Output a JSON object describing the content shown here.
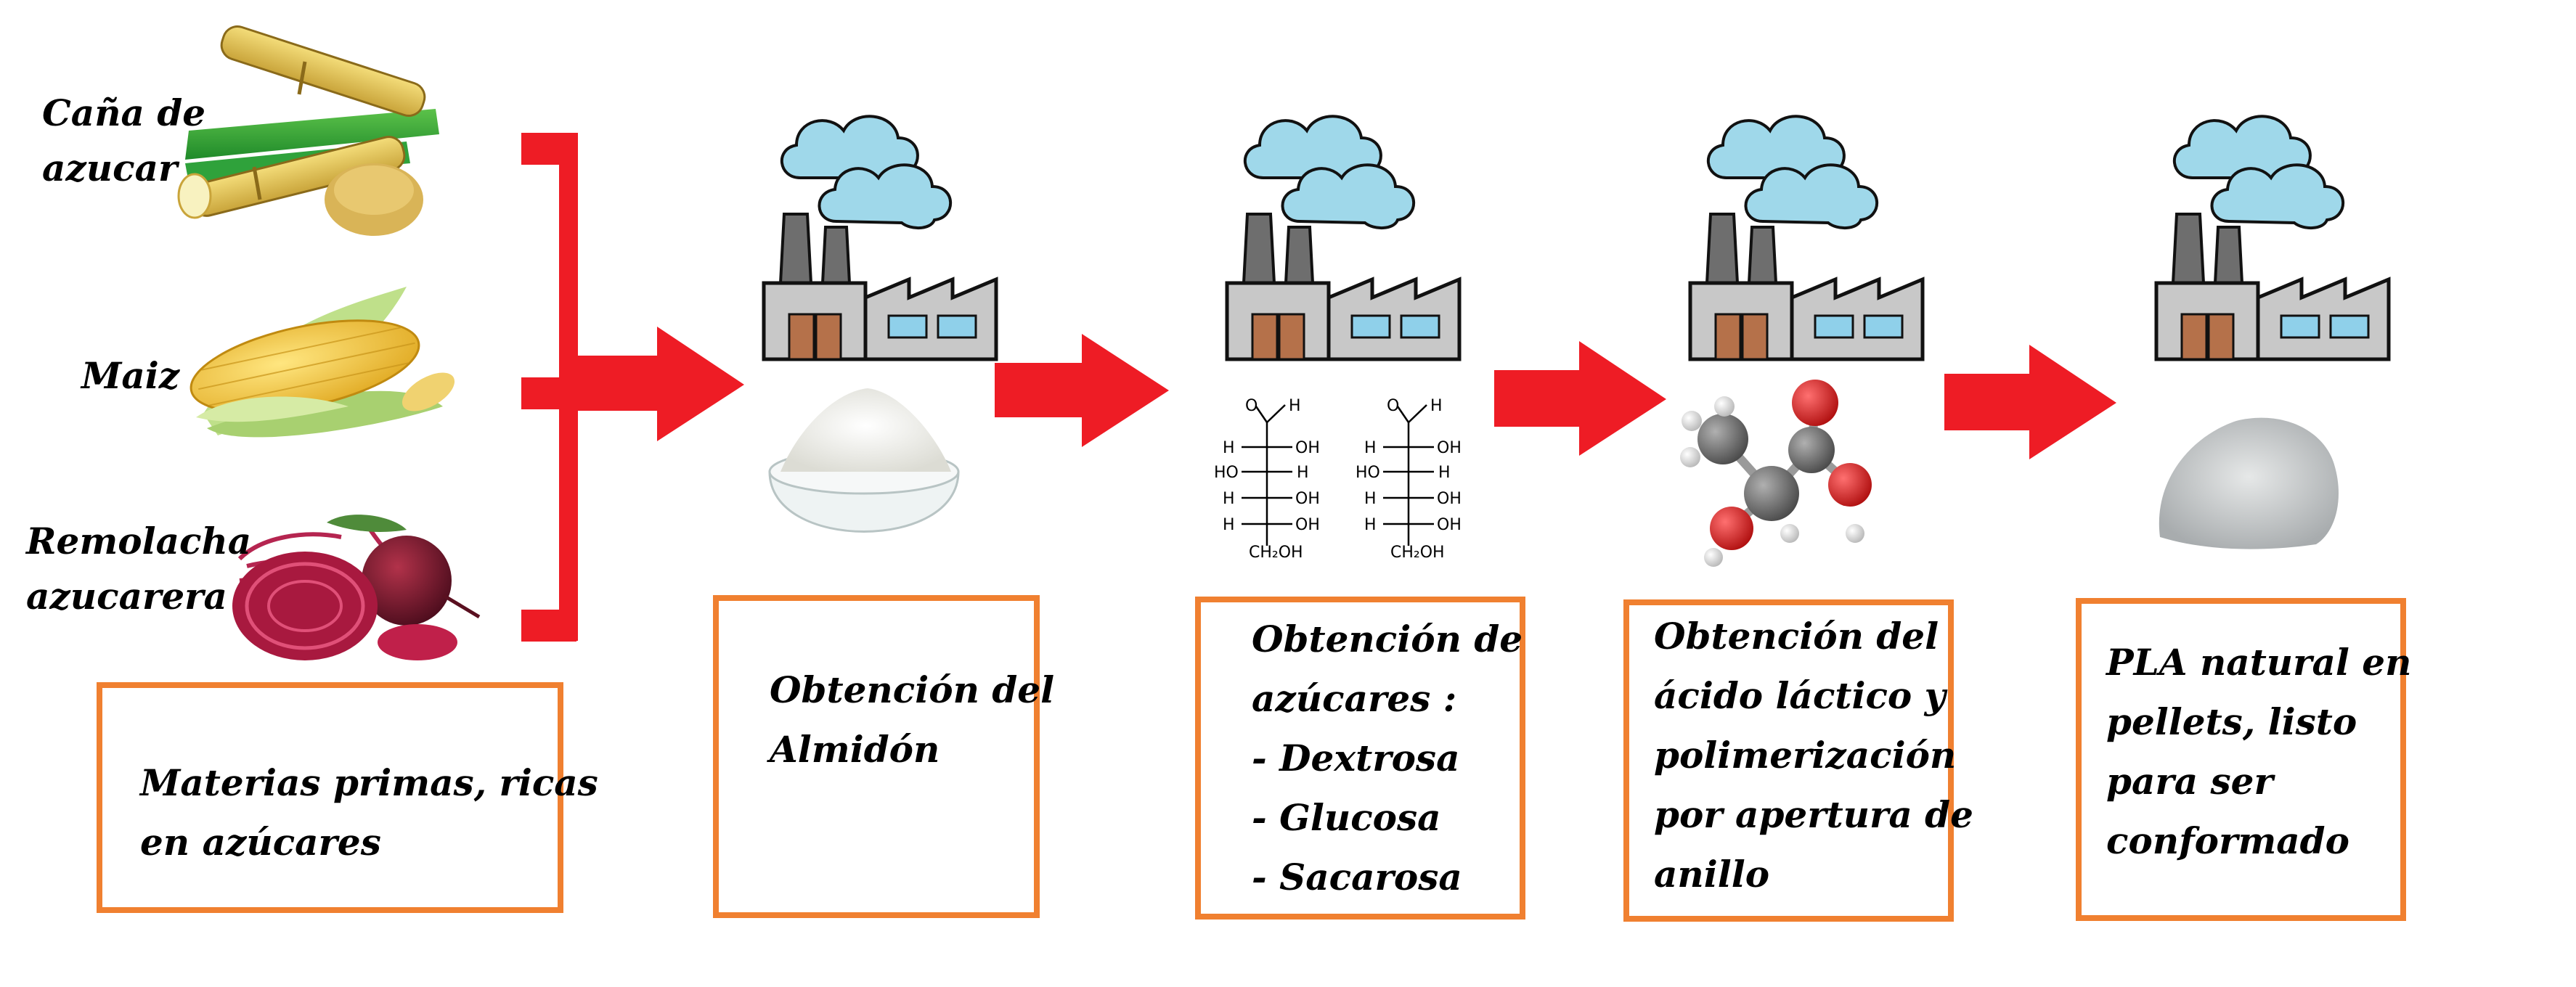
{
  "raw_materials": {
    "cane_label": "Caña de azucar",
    "corn_label": "Maiz",
    "beet_label": "Remolacha azucarera"
  },
  "boxes": {
    "raw": [
      "Materias primas, ricas",
      "en azúcares"
    ],
    "starch": [
      "Obtención del",
      "Almidón"
    ],
    "sugars": [
      "Obtención de",
      "azúcares :",
      "- Dextrosa",
      "- Glucosa",
      "- Sacarosa"
    ],
    "lactic": [
      "Obtención del",
      "ácido láctico y",
      "polimerización",
      "por apertura de",
      "anillo"
    ],
    "pla": [
      "PLA natural en",
      "pellets, listo",
      "para ser",
      "conformado"
    ]
  },
  "molecule": {
    "h": "H",
    "o": "O",
    "oh": "OH",
    "ho": "HO",
    "ch2oh": "CH₂OH"
  },
  "colors": {
    "arrow": "#ee1c25",
    "box_border": "#f08030",
    "cloud": "#9fd8ea",
    "factory": "#c8c8c8"
  }
}
